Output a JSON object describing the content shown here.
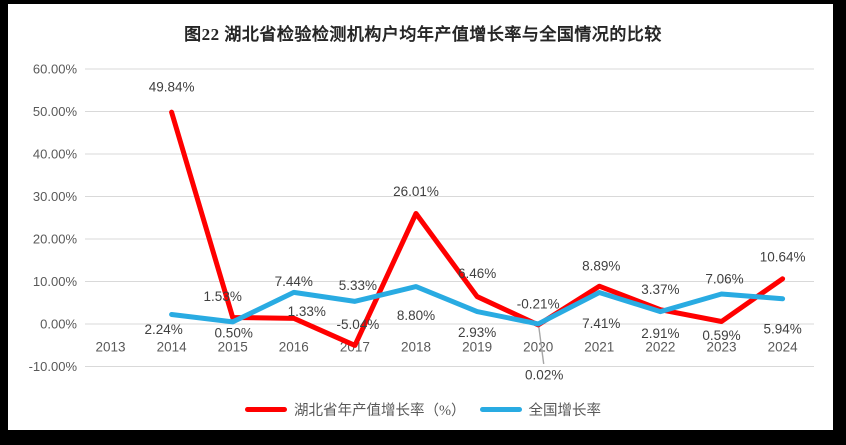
{
  "title": "图22 湖北省检验检测机构户均年产值增长率与全国情况的比较",
  "colors": {
    "hubei_red": "#FF0000",
    "national_blue": "#29ABE2",
    "gridline": "#D9D9D9",
    "axis_text": "#595959",
    "data_label": "#404040",
    "leader_line": "#A6A6A6",
    "frame": "#000000",
    "background": "#FFFFFF"
  },
  "chart_data": {
    "type": "line",
    "title": "图22 湖北省检验检测机构户均年产值增长率与全国情况的比较",
    "xlabel": "",
    "ylabel": "",
    "categories": [
      "2013",
      "2014",
      "2015",
      "2016",
      "2017",
      "2018",
      "2019",
      "2020",
      "2021",
      "2022",
      "2023",
      "2024"
    ],
    "series": [
      {
        "name": "湖北省年产值增长率（%）",
        "color": "#FF0000",
        "values": [
          null,
          49.84,
          1.53,
          1.33,
          -5.04,
          26.01,
          6.46,
          -0.21,
          8.89,
          3.37,
          0.59,
          10.64
        ],
        "label_dy": [
          null,
          -25,
          -21,
          -7,
          -21,
          -22,
          -23,
          -21,
          -20,
          -20,
          14,
          -22
        ],
        "label_dx": [
          null,
          0,
          -10,
          13,
          3,
          0,
          0,
          0,
          2,
          0,
          0,
          0
        ]
      },
      {
        "name": "全国增长率",
        "color": "#29ABE2",
        "values": [
          null,
          2.24,
          0.5,
          7.44,
          5.33,
          8.8,
          2.93,
          0.02,
          7.41,
          2.91,
          7.06,
          5.94
        ],
        "label_dy": [
          null,
          15,
          11,
          -11,
          -16,
          29,
          21,
          51,
          31,
          22,
          -15,
          30
        ],
        "label_dx": [
          null,
          -8,
          1,
          0,
          3,
          0,
          0,
          6,
          2,
          0,
          3,
          0
        ],
        "leader_index": 7
      }
    ],
    "ylim": [
      -10,
      60
    ],
    "ytick_step": 10,
    "ytick_format": "percent_2dp",
    "grid": true,
    "legend_position": "bottom"
  }
}
